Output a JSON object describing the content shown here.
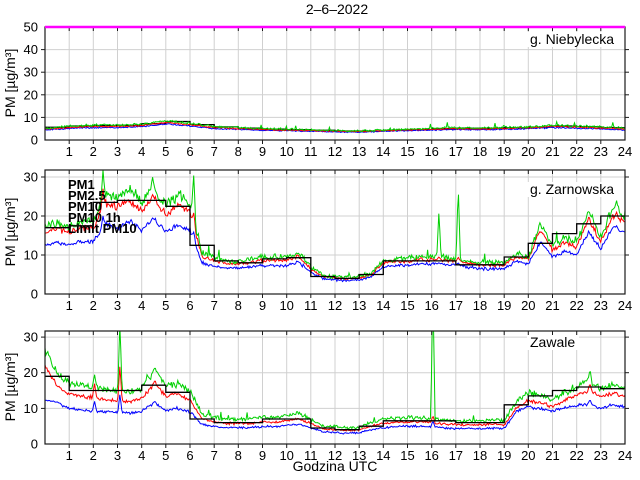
{
  "title": "2–6–2022",
  "xlabel": "Godzina UTC",
  "ylabel": "PM [µg/m³]",
  "colors": {
    "pm1": "#0000ff",
    "pm25": "#ff0000",
    "pm10": "#00d000",
    "pm10_1h": "#000000",
    "limit": "#ff00ff",
    "grid": "#d0d0d0",
    "axis": "#1a1a1a"
  },
  "legend": [
    {
      "label": "PM1",
      "color_key": "pm1"
    },
    {
      "label": "PM2.5",
      "color_key": "pm25"
    },
    {
      "label": "PM10",
      "color_key": "pm10"
    },
    {
      "label": "PM10 1h",
      "color_key": "pm10_1h"
    },
    {
      "label": "Limit PM10",
      "color_key": "limit"
    }
  ],
  "chart_data": {
    "type": "line",
    "x_hours_range": [
      0,
      24
    ],
    "xticks": [
      1,
      2,
      3,
      4,
      5,
      6,
      7,
      8,
      9,
      10,
      11,
      12,
      13,
      14,
      15,
      16,
      17,
      18,
      19,
      20,
      21,
      22,
      23,
      24
    ],
    "panels": [
      {
        "label": "g. Niebylecka",
        "ylim": [
          0,
          50
        ],
        "yticks": [
          0,
          10,
          20,
          30,
          40,
          50
        ],
        "limit_line": 50,
        "anchor_step_h": 1.0,
        "pm10": [
          5.2,
          6.0,
          6.6,
          6.6,
          7.0,
          8.6,
          7.4,
          6.0,
          5.5,
          5.0,
          4.8,
          4.5,
          4.2,
          4.0,
          4.4,
          4.8,
          5.2,
          5.5,
          5.3,
          5.5,
          5.8,
          6.5,
          6.2,
          5.8,
          5.2
        ],
        "pm25": [
          4.8,
          5.5,
          6.0,
          6.0,
          6.4,
          7.8,
          6.8,
          5.5,
          5.1,
          4.6,
          4.4,
          4.2,
          3.9,
          3.7,
          4.1,
          4.4,
          4.8,
          5.0,
          4.9,
          5.1,
          5.4,
          6.0,
          5.7,
          5.3,
          4.8
        ],
        "pm1": [
          4.5,
          5.1,
          5.5,
          5.5,
          5.9,
          7.1,
          6.2,
          5.0,
          4.7,
          4.3,
          4.1,
          3.9,
          3.6,
          3.5,
          3.8,
          4.1,
          4.4,
          4.6,
          4.5,
          4.7,
          5.0,
          5.5,
          5.2,
          4.9,
          4.4
        ],
        "pm10_1h": [
          5.6,
          6.2,
          6.4,
          6.5,
          7.2,
          8.2,
          6.8,
          5.8,
          5.2,
          4.8,
          4.6,
          4.3,
          4.0,
          4.0,
          4.3,
          4.6,
          5.0,
          5.2,
          5.2,
          5.4,
          5.7,
          6.2,
          5.9,
          5.5
        ],
        "noise": {
          "pm10": 0.85,
          "pm25": 0.55,
          "pm1": 0.5
        },
        "spikes": []
      },
      {
        "label": "g. Zarnowska",
        "ylim": [
          0,
          31.8
        ],
        "yticks": [
          0,
          10,
          20,
          30
        ],
        "limit_line": null,
        "anchor_step_h": 0.5,
        "pm10": [
          17.5,
          18,
          17.5,
          18.5,
          18.5,
          26,
          25,
          26.5,
          24,
          27,
          23,
          25.5,
          23.5,
          10.5,
          9.5,
          8.5,
          8.5,
          9,
          9.5,
          9.5,
          9.5,
          10.8,
          7,
          4.8,
          4.5,
          4.2,
          4.5,
          5.5,
          8.5,
          9,
          9,
          9.5,
          9.5,
          9.5,
          9,
          8.5,
          8,
          8,
          8,
          10.5,
          9.5,
          18,
          12.5,
          14.5,
          13,
          21.5,
          14.5,
          22,
          20
        ],
        "pm25": [
          16,
          16.5,
          16,
          17,
          17,
          23.5,
          22.5,
          24,
          21.5,
          24.5,
          20.5,
          23,
          21,
          9.5,
          8.5,
          7.8,
          7.8,
          8.2,
          8.6,
          8.6,
          8.6,
          9.8,
          6.4,
          4.4,
          4.1,
          3.9,
          4.1,
          5,
          8,
          8.4,
          8.4,
          8.8,
          8.8,
          8.8,
          8.4,
          7.9,
          7.4,
          7.4,
          7.4,
          9.6,
          8.8,
          16.5,
          11.3,
          13.2,
          12,
          19.5,
          13.2,
          20,
          18
        ],
        "pm1": [
          12.5,
          13,
          12.5,
          13.5,
          13.5,
          18,
          17,
          18.5,
          16.5,
          19,
          16,
          17.5,
          16.5,
          8,
          7.2,
          6.6,
          6.6,
          7,
          7.3,
          7.3,
          7.3,
          8.2,
          5.5,
          3.9,
          3.6,
          3.4,
          3.6,
          4.4,
          7,
          7.4,
          7.4,
          7.7,
          7.7,
          7.7,
          7.4,
          6.9,
          6.5,
          6.5,
          6.5,
          8.4,
          7.6,
          13.5,
          9.5,
          11,
          10,
          16,
          11.5,
          17,
          15.5
        ],
        "pm10_1h": [
          17,
          17.5,
          23.5,
          24,
          24,
          22.5,
          12.5,
          8.5,
          8,
          9,
          9.3,
          4.5,
          4,
          5,
          8.5,
          8.5,
          8.5,
          7.5,
          7.5,
          9.5,
          13,
          15.5,
          18,
          20
        ],
        "noise": {
          "pm10": 1.0,
          "pm25": 0.7,
          "pm1": 0.6
        },
        "spikes": [
          {
            "h": 2.4,
            "pm10": 31.8,
            "pm25": 27,
            "pm1": 20
          },
          {
            "h": 4.45,
            "pm10": 30,
            "pm25": 25.5,
            "pm1": 19.5
          },
          {
            "h": 6.15,
            "pm10": 31,
            "pm25": 21,
            "pm1": 16
          },
          {
            "h": 16.3,
            "pm10": 21,
            "pm25": 9.5,
            "pm1": 8
          },
          {
            "h": 17.1,
            "pm10": 27.5,
            "pm25": 9.5,
            "pm1": 8
          },
          {
            "h": 23.65,
            "pm10": 24,
            "pm25": 21,
            "pm1": 17.5
          }
        ]
      },
      {
        "label": "Zawale",
        "ylim": [
          0,
          31.7
        ],
        "yticks": [
          0,
          10,
          20,
          30
        ],
        "limit_line": null,
        "anchor_step_h": 0.5,
        "pm10": [
          27,
          20,
          17,
          16.5,
          16,
          15.5,
          15,
          14.5,
          15.5,
          20.5,
          16.5,
          17,
          15,
          8.5,
          7.5,
          7,
          7,
          7,
          7.5,
          7.5,
          8,
          8.5,
          7,
          5,
          4.8,
          4.5,
          4.8,
          6,
          7,
          7.2,
          7.5,
          7.5,
          7.2,
          6.8,
          6.5,
          6.5,
          6.5,
          6.8,
          6.5,
          12,
          14.5,
          13.5,
          12.5,
          14.5,
          16,
          17.5,
          15.5,
          16.5,
          15.5
        ],
        "pm25": [
          22,
          16.5,
          14,
          13.5,
          13,
          12.5,
          12.2,
          12,
          12.8,
          16.5,
          13.5,
          14,
          12.5,
          7,
          6.2,
          5.8,
          5.8,
          5.8,
          6.2,
          6.2,
          6.6,
          7,
          5.8,
          4.2,
          4,
          3.8,
          4,
          5,
          5.8,
          6,
          6.2,
          6.2,
          6,
          5.6,
          5.4,
          5.4,
          5.4,
          5.6,
          5.4,
          10,
          12.3,
          11.5,
          10.5,
          12.3,
          13.7,
          15,
          13.3,
          14.2,
          13.3
        ],
        "pm1": [
          12.5,
          11.5,
          10,
          9.5,
          9.2,
          9,
          8.8,
          8.6,
          9.2,
          11.5,
          9.5,
          10,
          9,
          5.5,
          4.9,
          4.6,
          4.6,
          4.6,
          4.9,
          4.9,
          5.2,
          5.5,
          4.6,
          3.4,
          3.2,
          3,
          3.2,
          4,
          4.6,
          4.8,
          5,
          5,
          4.8,
          4.5,
          4.3,
          4.3,
          4.3,
          4.5,
          4.3,
          9,
          10.5,
          9.8,
          9.3,
          10,
          10.8,
          11.2,
          10,
          11,
          10.3
        ],
        "pm10_1h": [
          19,
          15,
          15,
          15,
          16.5,
          14.5,
          7,
          6,
          6,
          7,
          7,
          4.5,
          4,
          5,
          6.5,
          6.5,
          6.5,
          6,
          6,
          11,
          13.5,
          15,
          16,
          15.5
        ],
        "noise": {
          "pm10": 0.9,
          "pm25": 0.6,
          "pm1": 0.55
        },
        "spikes": [
          {
            "h": 2.05,
            "pm10": 19.5,
            "pm25": 17,
            "pm1": 12
          },
          {
            "h": 3.1,
            "pm10": 34,
            "pm25": 22,
            "pm1": 14
          },
          {
            "h": 4.55,
            "pm10": 21.5,
            "pm25": 18,
            "pm1": 12
          },
          {
            "h": 16.05,
            "pm10": 44,
            "pm25": 8,
            "pm1": 6.5
          },
          {
            "h": 22.55,
            "pm10": 21,
            "pm25": 17,
            "pm1": 12.5
          }
        ]
      }
    ]
  }
}
